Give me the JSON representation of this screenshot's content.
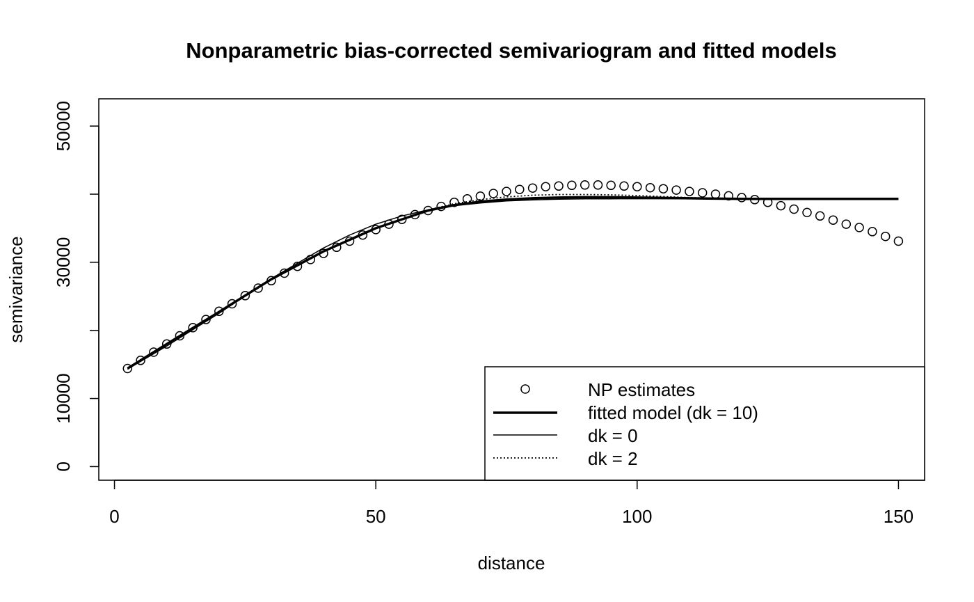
{
  "chart_data": {
    "type": "scatter",
    "title": "Nonparametric bias-corrected semivariogram and fitted models",
    "xlabel": "distance",
    "ylabel": "semivariance",
    "xlim": [
      -3,
      155
    ],
    "ylim": [
      -2000,
      54000
    ],
    "x_ticks": [
      0,
      50,
      100,
      150
    ],
    "y_ticks": [
      0,
      10000,
      30000,
      50000
    ],
    "grid": false,
    "legend_position": "bottom-right",
    "series": [
      {
        "name": "NP estimates",
        "style": "points",
        "x": [
          2.5,
          5,
          7.5,
          10,
          12.5,
          15,
          17.5,
          20,
          22.5,
          25,
          27.5,
          30,
          32.5,
          35,
          37.5,
          40,
          42.5,
          45,
          47.5,
          50,
          52.5,
          55,
          57.5,
          60,
          62.5,
          65,
          67.5,
          70,
          72.5,
          75,
          77.5,
          80,
          82.5,
          85,
          87.5,
          90,
          92.5,
          95,
          97.5,
          100,
          102.5,
          105,
          107.5,
          110,
          112.5,
          115,
          117.5,
          120,
          122.5,
          125,
          127.5,
          130,
          132.5,
          135,
          137.5,
          140,
          142.5,
          145,
          147.5,
          150
        ],
        "y": [
          14400,
          15600,
          16800,
          18000,
          19200,
          20400,
          21600,
          22800,
          23900,
          25100,
          26200,
          27300,
          28400,
          29400,
          30400,
          31300,
          32200,
          33100,
          34000,
          34800,
          35600,
          36300,
          37000,
          37600,
          38200,
          38800,
          39300,
          39700,
          40100,
          40400,
          40700,
          40900,
          41100,
          41200,
          41300,
          41350,
          41350,
          41300,
          41200,
          41100,
          40950,
          40800,
          40600,
          40400,
          40200,
          40000,
          39750,
          39500,
          39200,
          38800,
          38300,
          37800,
          37300,
          36800,
          36200,
          35600,
          35100,
          34500,
          33800,
          33100
        ]
      },
      {
        "name": "fitted model (dk = 10)",
        "style": "thick-line",
        "x": [
          2.5,
          10,
          20,
          30,
          40,
          50,
          60,
          65,
          70,
          75,
          80,
          85,
          90,
          95,
          100,
          105,
          110,
          115,
          120,
          125,
          130,
          140,
          150
        ],
        "y": [
          14400,
          18000,
          22700,
          27500,
          31600,
          35000,
          37600,
          38400,
          38900,
          39200,
          39400,
          39500,
          39550,
          39550,
          39500,
          39450,
          39400,
          39350,
          39300,
          39300,
          39300,
          39300,
          39300
        ]
      },
      {
        "name": "dk = 0",
        "style": "thin-line",
        "x": [
          2.5,
          10,
          20,
          30,
          40,
          45,
          50,
          55,
          60,
          65,
          70,
          75,
          80,
          85,
          90,
          95,
          100,
          110,
          120,
          130,
          140,
          150
        ],
        "y": [
          14300,
          17700,
          22500,
          27600,
          32100,
          34000,
          35600,
          36800,
          37700,
          38300,
          38700,
          39000,
          39150,
          39250,
          39300,
          39320,
          39330,
          39330,
          39330,
          39330,
          39330,
          39330
        ]
      },
      {
        "name": "dk = 2",
        "style": "dotted-line",
        "x": [
          2.5,
          10,
          20,
          30,
          40,
          50,
          60,
          65,
          70,
          75,
          80,
          85,
          90,
          95,
          100,
          105,
          110,
          115,
          120,
          125,
          130,
          140,
          150
        ],
        "y": [
          14400,
          18000,
          22700,
          27500,
          31600,
          35000,
          37700,
          38600,
          39200,
          39600,
          39850,
          39950,
          39950,
          39900,
          39800,
          39650,
          39500,
          39400,
          39300,
          39250,
          39250,
          39250,
          39250
        ]
      }
    ]
  }
}
